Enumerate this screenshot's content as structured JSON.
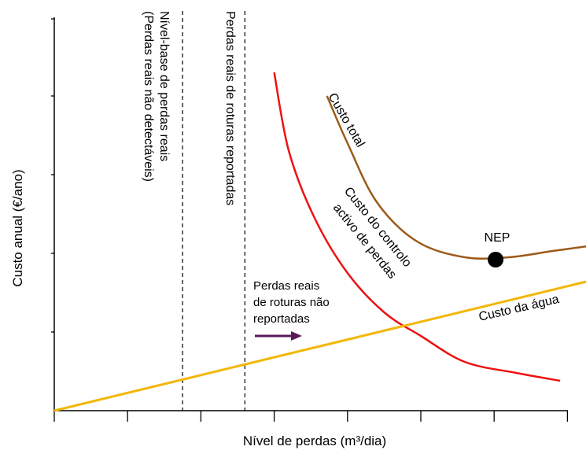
{
  "chart_data": {
    "type": "line",
    "xlabel": "Nível de perdas (m³/dia)",
    "ylabel": "Custo anual (€/ano)",
    "x_ticks": 8,
    "y_ticks": 5,
    "series": [
      {
        "name": "Custo total",
        "color": "#9c5a1a",
        "points": [
          [
            3.72,
            4.0
          ],
          [
            4.0,
            3.4
          ],
          [
            4.4,
            2.65
          ],
          [
            4.95,
            2.15
          ],
          [
            5.6,
            1.95
          ],
          [
            6.2,
            1.95
          ],
          [
            6.8,
            2.03
          ],
          [
            7.35,
            2.1
          ]
        ]
      },
      {
        "name": "Custo do controlo activo de perdas",
        "color": "#ee1111",
        "points": [
          [
            3.0,
            4.3
          ],
          [
            3.2,
            3.3
          ],
          [
            3.55,
            2.45
          ],
          [
            4.0,
            1.75
          ],
          [
            4.5,
            1.25
          ],
          [
            5.0,
            0.95
          ],
          [
            5.6,
            0.62
          ],
          [
            6.3,
            0.48
          ],
          [
            6.9,
            0.38
          ]
        ]
      },
      {
        "name": "Custo da água",
        "color": "#f2b707",
        "points": [
          [
            0.0,
            0.0
          ],
          [
            7.3,
            1.65
          ]
        ]
      }
    ],
    "markers": [
      {
        "label": "NEP",
        "x": 6.02,
        "y": 1.92
      }
    ],
    "vertical_lines": [
      {
        "x": 1.75,
        "label_lines": [
          "Nível-base de perdas reais",
          "(Perdas reais não detectáveis)"
        ]
      },
      {
        "x": 2.6,
        "label_lines": [
          "Perdas reais de roturas reportadas"
        ]
      }
    ],
    "annotation": {
      "lines": [
        "Perdas reais",
        "de roturas não",
        "reportadas"
      ],
      "arrow_color": "#5a1a5a"
    },
    "curve_labels": {
      "total": "Custo total",
      "controlo": [
        "Custo do controlo",
        "activo de perdas"
      ],
      "agua": "Custo da água"
    }
  }
}
